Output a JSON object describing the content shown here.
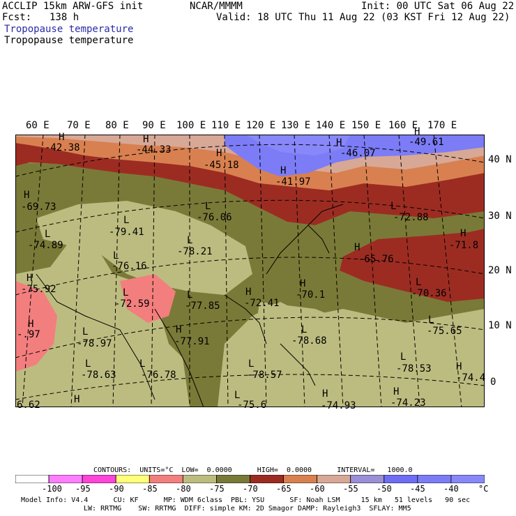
{
  "header": {
    "model": "ACCLIP 15km ARW-GFS init",
    "center": "NCAR/MMMM",
    "init": "Init: 00 UTC Sat 06 Aug 22",
    "fcst_label": "Fcst:",
    "fcst_value": "138 h",
    "valid": "Valid: 18 UTC Thu 11 Aug 22 (03 KST Fri 12 Aug 22)",
    "field_title_colored": "Tropopause temperature",
    "field_title": "Tropopause temperature"
  },
  "map": {
    "lon_labels": [
      "60 E",
      "70 E",
      "80 E",
      "90 E",
      "100 E",
      "110 E",
      "120 E",
      "130 E",
      "140 E",
      "150 E",
      "160 E",
      "170 E"
    ],
    "lat_labels": [
      "40 N",
      "30 N",
      "20 N",
      "10 N",
      "0"
    ],
    "extrema": [
      {
        "type": "H",
        "value": "-42.38"
      },
      {
        "type": "H",
        "value": "-44.33"
      },
      {
        "type": "H",
        "value": "-45.18"
      },
      {
        "type": "H",
        "value": "-41.97"
      },
      {
        "type": "H",
        "value": "-46.07"
      },
      {
        "type": "H",
        "value": "-49.61"
      },
      {
        "type": "H",
        "value": "-69.73"
      },
      {
        "type": "L",
        "value": "-79.41"
      },
      {
        "type": "L",
        "value": "-76.06"
      },
      {
        "type": "L",
        "value": "-74.89"
      },
      {
        "type": "L",
        "value": "-78.21"
      },
      {
        "type": "L",
        "value": "-72.88"
      },
      {
        "type": "H",
        "value": "-71.8"
      },
      {
        "type": "H",
        "value": "-65.76"
      },
      {
        "type": "L",
        "value": "-76.16"
      },
      {
        "type": "H",
        "value": "-75.92"
      },
      {
        "type": "L",
        "value": "-72.59"
      },
      {
        "type": "L",
        "value": "-77.85"
      },
      {
        "type": "H",
        "value": "-72.41"
      },
      {
        "type": "H",
        "value": "-70.1"
      },
      {
        "type": "L",
        "value": "-70.36"
      },
      {
        "type": "H",
        "value": "-.97"
      },
      {
        "type": "L",
        "value": "-78.97"
      },
      {
        "type": "H",
        "value": "-77.91"
      },
      {
        "type": "L",
        "value": "-78.68"
      },
      {
        "type": "L",
        "value": "-75.65"
      },
      {
        "type": "L",
        "value": "-78.53"
      },
      {
        "type": "L",
        "value": "-78.63"
      },
      {
        "type": "L",
        "value": "-76.78"
      },
      {
        "type": "L",
        "value": "-78.57"
      },
      {
        "type": "H",
        "value": "-74.4"
      },
      {
        "type": "H",
        "value": "-74.93"
      },
      {
        "type": "H",
        "value": "-74.23"
      },
      {
        "type": "L",
        "value": "-75.6"
      },
      {
        "type": "H",
        "value": "6.62"
      }
    ]
  },
  "footer": {
    "contours": "CONTOURS:  UNITS=°C  LOW=  0.0000      HIGH=  0.0000      INTERVAL=   1000.0",
    "colorbar_colors": [
      "#ffffff",
      "#ff7eff",
      "#ff44d8",
      "#ffff7a",
      "#f37e7e",
      "#bcbc80",
      "#7a7a38",
      "#9c2c22",
      "#d98050",
      "#d8a896",
      "#9a8ed6",
      "#6e6ef4",
      "#7c7cf6",
      "#8888fa"
    ],
    "colorbar_ticks": [
      "-100",
      "-95",
      "-90",
      "-85",
      "-80",
      "-75",
      "-70",
      "-65",
      "-60",
      "-55",
      "-50",
      "-45",
      "-40",
      "°C"
    ],
    "model_info_1": "Model Info: V4.4      CU: KF      MP: WDM 6class  PBL: YSU      SF: Noah LSM     15 km   51 levels   90 sec",
    "model_info_2": "LW: RRTMG    SW: RRTMG  DIFF: simple KM: 2D Smagor DAMP: Rayleigh3  SFLAY: MM5"
  }
}
